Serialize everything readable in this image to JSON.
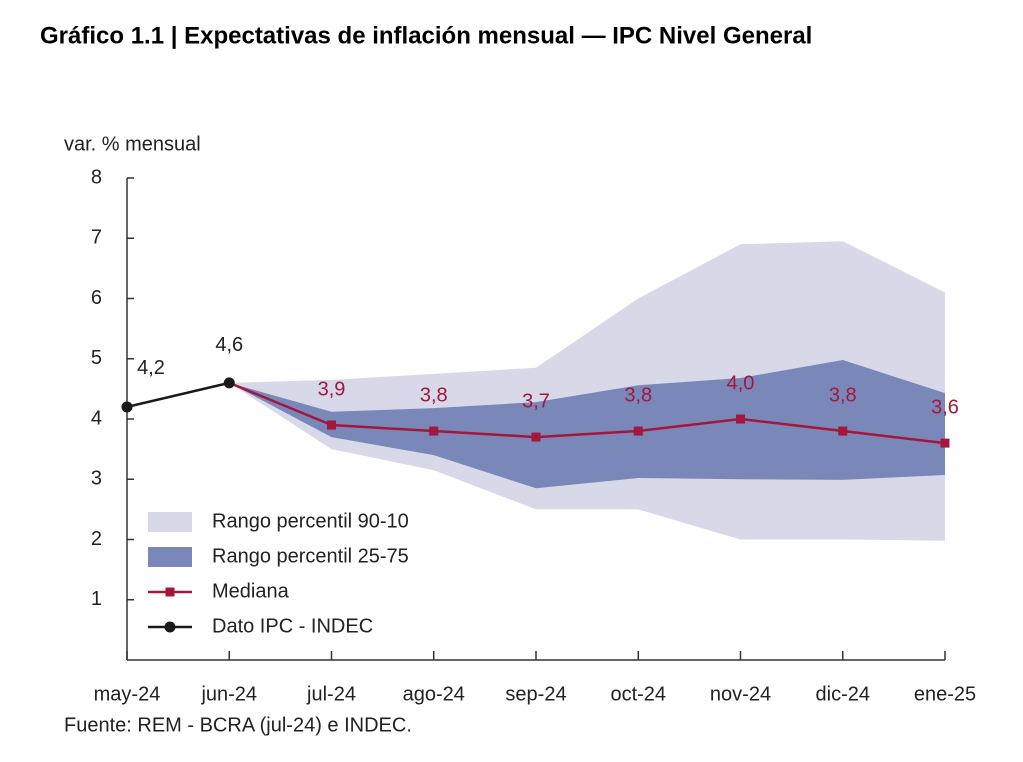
{
  "chart_data": {
    "type": "fan",
    "title": "Gráfico 1.1 | Expectativas de inflación mensual — IPC Nivel General",
    "y_axis_label": "var. % mensual",
    "source": "Fuente: REM - BCRA (jul-24) e INDEC.",
    "categories": [
      "may-24",
      "jun-24",
      "jul-24",
      "ago-24",
      "sep-24",
      "oct-24",
      "nov-24",
      "dic-24",
      "ene-25"
    ],
    "ylim": [
      0,
      8
    ],
    "yticks": [
      1,
      2,
      3,
      4,
      5,
      6,
      7,
      8
    ],
    "series": [
      {
        "name": "Rango percentil 90-10",
        "kind": "band",
        "color": "#d7d9e9",
        "lower": [
          null,
          4.6,
          3.5,
          3.15,
          2.5,
          2.5,
          2.0,
          2.0,
          1.98
        ],
        "upper": [
          null,
          4.6,
          4.65,
          4.75,
          4.85,
          6.0,
          6.9,
          6.95,
          6.1
        ]
      },
      {
        "name": "Rango percentil 25-75",
        "kind": "band",
        "color": "#7a87b9",
        "lower": [
          null,
          4.6,
          3.7,
          3.4,
          2.85,
          3.02,
          3.0,
          2.99,
          3.07
        ],
        "upper": [
          null,
          4.6,
          4.12,
          4.18,
          4.28,
          4.56,
          4.68,
          4.98,
          4.43
        ]
      },
      {
        "name": "Mediana",
        "kind": "line",
        "marker": "square",
        "color": "#a3173d",
        "values": [
          null,
          4.6,
          3.9,
          3.8,
          3.7,
          3.8,
          4.0,
          3.8,
          3.6
        ],
        "value_labels": [
          null,
          null,
          "3,9",
          "3,8",
          "3,7",
          "3,8",
          "4,0",
          "3,8",
          "3,6"
        ]
      },
      {
        "name": "Dato IPC - INDEC",
        "kind": "line",
        "marker": "circle",
        "color": "#1a1a1a",
        "values": [
          4.2,
          4.6,
          null,
          null,
          null,
          null,
          null,
          null,
          null
        ],
        "value_labels": [
          "4,2",
          "4,6",
          null,
          null,
          null,
          null,
          null,
          null,
          null
        ]
      }
    ]
  }
}
